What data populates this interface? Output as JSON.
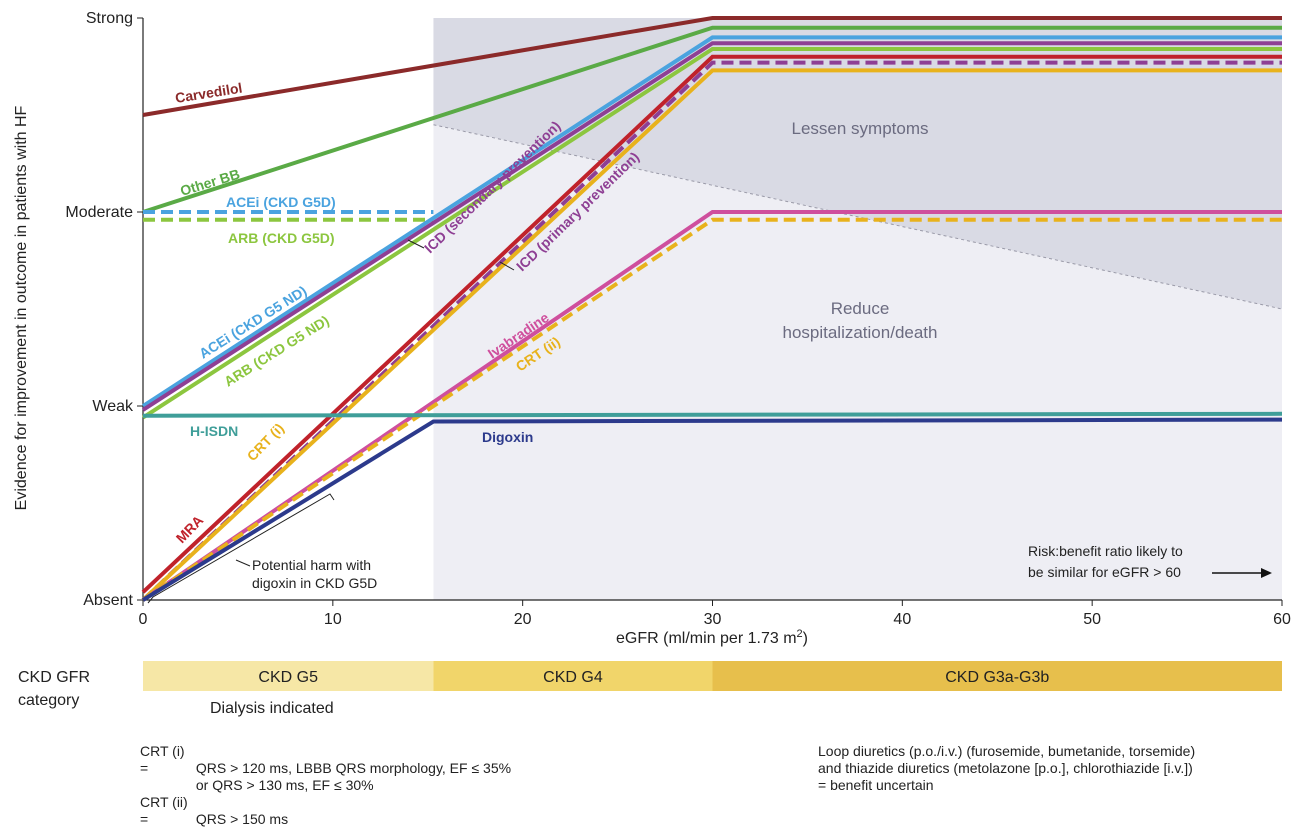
{
  "chart_data": {
    "type": "line",
    "xlabel": "eGFR (ml/min per 1.73 m",
    "xlabel_sup": "2",
    "xlabel_end": ")",
    "ylabel": "Evidence for improvement in outcome in patients with HF",
    "xlim": [
      0,
      60
    ],
    "ylim": [
      0,
      3
    ],
    "x_ticks": [
      "0",
      "10",
      "20",
      "30",
      "40",
      "50",
      "60"
    ],
    "y_ticks": [
      "Absent",
      "Weak",
      "Moderate",
      "Strong"
    ],
    "series": [
      {
        "name": "Carvedilol",
        "color": "#8b2a2a",
        "dash": false,
        "points": [
          [
            0,
            2.5
          ],
          [
            30,
            3.0
          ],
          [
            60,
            3.0
          ]
        ]
      },
      {
        "name": "Other BB",
        "color": "#5aaa46",
        "dash": false,
        "points": [
          [
            0,
            2.0
          ],
          [
            30,
            2.95
          ],
          [
            60,
            2.95
          ]
        ]
      },
      {
        "name": "ACEi (CKD G5D)",
        "color": "#4aa3df",
        "dash": true,
        "points": [
          [
            0,
            2.0
          ],
          [
            15.3,
            2.0
          ]
        ]
      },
      {
        "name": "ARB (CKD G5D)",
        "color": "#8cc63f",
        "dash": true,
        "points": [
          [
            0,
            1.96
          ],
          [
            15.3,
            1.96
          ]
        ]
      },
      {
        "name": "ACEi (CKD G5 ND)",
        "color": "#4aa3df",
        "dash": false,
        "points": [
          [
            0,
            1.0
          ],
          [
            30,
            2.9
          ],
          [
            60,
            2.9
          ]
        ]
      },
      {
        "name": "ICD (secondary prevention)",
        "color": "#8e3f94",
        "dash": false,
        "points": [
          [
            0,
            0.98
          ],
          [
            30,
            2.87
          ],
          [
            60,
            2.87
          ]
        ]
      },
      {
        "name": "ARB (CKD G5 ND)",
        "color": "#8cc63f",
        "dash": false,
        "points": [
          [
            0,
            0.94
          ],
          [
            30,
            2.84
          ],
          [
            60,
            2.84
          ]
        ]
      },
      {
        "name": "MRA",
        "color": "#c0222b",
        "dash": false,
        "points": [
          [
            0,
            0.04
          ],
          [
            30,
            2.8
          ],
          [
            60,
            2.8
          ]
        ]
      },
      {
        "name": "ICD (primary prevention)",
        "color": "#8e3f94",
        "dash": true,
        "points": [
          [
            0,
            0.0
          ],
          [
            30,
            2.77
          ],
          [
            60,
            2.77
          ]
        ]
      },
      {
        "name": "CRT (i)",
        "color": "#e8b21c",
        "dash": false,
        "points": [
          [
            0,
            0.0
          ],
          [
            30,
            2.73
          ],
          [
            60,
            2.73
          ]
        ]
      },
      {
        "name": "Ivabradine",
        "color": "#cf4f9d",
        "dash": false,
        "points": [
          [
            0,
            0.0
          ],
          [
            30,
            2.0
          ],
          [
            60,
            2.0
          ]
        ]
      },
      {
        "name": "CRT (ii)",
        "color": "#e8b21c",
        "dash": true,
        "points": [
          [
            0,
            0.0
          ],
          [
            30,
            1.96
          ],
          [
            60,
            1.96
          ]
        ]
      },
      {
        "name": "H-ISDN",
        "color": "#3f9e99",
        "dash": false,
        "points": [
          [
            0,
            0.95
          ],
          [
            60,
            0.96
          ]
        ]
      },
      {
        "name": "Digoxin",
        "color": "#2c3a8c",
        "dash": false,
        "points": [
          [
            0,
            0.0
          ],
          [
            15.3,
            0.92
          ],
          [
            60,
            0.93
          ]
        ]
      }
    ],
    "zones": {
      "upper": "Lessen symptoms",
      "lower_line1": "Reduce",
      "lower_line2": "hospitalization/death"
    },
    "annotations": {
      "harm_line1": "Potential harm with",
      "harm_line2": "digoxin in CKD G5D",
      "risk_line1": "Risk:benefit ratio likely to",
      "risk_line2": "be similar for eGFR > 60"
    },
    "category_bar": {
      "label_line1": "CKD GFR",
      "label_line2": "category",
      "segments": [
        {
          "label": "CKD G5",
          "from": 0,
          "to": 15.3,
          "color": "#f6e7a6"
        },
        {
          "label": "CKD G4",
          "from": 15.3,
          "to": 30,
          "color": "#f1d56a"
        },
        {
          "label": "CKD G3a-G3b",
          "from": 30,
          "to": 60,
          "color": "#e7bf4c"
        }
      ],
      "sub_label": "Dialysis indicated"
    }
  },
  "footnotes": {
    "crt1_key": "CRT (i) =",
    "crt1_line1": "QRS > 120 ms, LBBB QRS morphology, EF ≤ 35%",
    "crt1_line2": "or QRS > 130 ms, EF ≤ 30%",
    "crt2_key": "CRT (ii) =",
    "crt2_line1": "QRS > 150 ms",
    "diuretics_line1": "Loop diuretics (p.o./i.v.) (furosemide, bumetanide, torsemide)",
    "diuretics_line2": "and thiazide diuretics (metolazone [p.o.], chlorothiazide [i.v.])",
    "diuretics_line3": "= benefit uncertain"
  }
}
